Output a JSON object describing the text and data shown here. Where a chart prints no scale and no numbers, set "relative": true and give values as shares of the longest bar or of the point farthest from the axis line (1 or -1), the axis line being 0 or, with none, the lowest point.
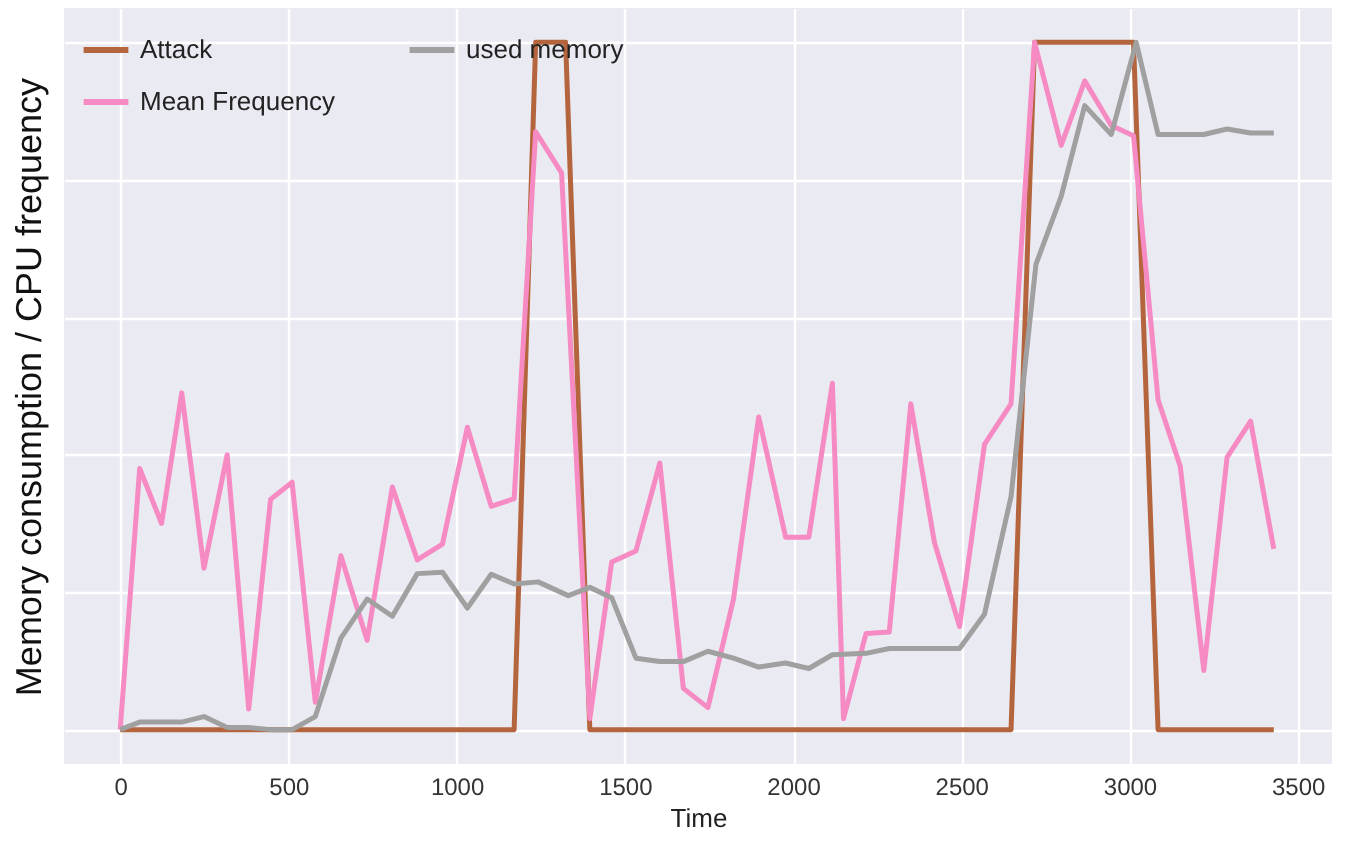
{
  "chart_data": {
    "type": "line",
    "xlabel": "Time",
    "ylabel": "Memory consumption / CPU frequency",
    "relative": true,
    "xlim": [
      -167,
      3602
    ],
    "xticks": [
      0,
      500,
      1000,
      1500,
      2000,
      2500,
      3000,
      3500
    ],
    "grid": true,
    "legend": "top left",
    "line_style": "solid",
    "series": [
      {
        "name": "Attack",
        "color": "#b5653e",
        "x": [
          0,
          1171,
          1235,
          1324,
          1396,
          2648,
          2718,
          3012,
          3085,
          3429
        ],
        "values": [
          0,
          0,
          1,
          1,
          0,
          0,
          1,
          1,
          0,
          0
        ]
      },
      {
        "name": "Mean Frequency",
        "color": "#f68bc3",
        "x": [
          0,
          58,
          123,
          183,
          249,
          318,
          382,
          447,
          511,
          580,
          656,
          734,
          809,
          883,
          958,
          1032,
          1103,
          1171,
          1235,
          1312,
          1396,
          1461,
          1533,
          1604,
          1674,
          1747,
          1823,
          1898,
          1978,
          2047,
          2117,
          2150,
          2217,
          2286,
          2350,
          2420,
          2495,
          2569,
          2648,
          2718,
          2797,
          2867,
          2946,
          3012,
          3085,
          3151,
          3221,
          3290,
          3360,
          3429
        ],
        "values": [
          0,
          0.38,
          0.3,
          0.49,
          0.235,
          0.4,
          0.03,
          0.335,
          0.36,
          0.04,
          0.253,
          0.13,
          0.353,
          0.247,
          0.27,
          0.44,
          0.325,
          0.336,
          0.87,
          0.81,
          0.016,
          0.244,
          0.26,
          0.388,
          0.06,
          0.032,
          0.19,
          0.455,
          0.28,
          0.28,
          0.504,
          0.016,
          0.14,
          0.142,
          0.474,
          0.273,
          0.15,
          0.415,
          0.474,
          1,
          0.85,
          0.944,
          0.879,
          0.864,
          0.48,
          0.383,
          0.086,
          0.396,
          0.449,
          0.263
        ]
      },
      {
        "name": "used memory",
        "color": "#a0a0a0",
        "x": [
          0,
          58,
          123,
          183,
          249,
          318,
          382,
          447,
          511,
          580,
          656,
          734,
          809,
          883,
          958,
          1032,
          1103,
          1171,
          1242,
          1332,
          1396,
          1461,
          1533,
          1604,
          1674,
          1747,
          1823,
          1898,
          1978,
          2047,
          2117,
          2217,
          2286,
          2360,
          2420,
          2495,
          2569,
          2648,
          2722,
          2797,
          2867,
          2946,
          3020,
          3085,
          3151,
          3221,
          3290,
          3360,
          3429
        ],
        "values": [
          0,
          0.011,
          0.011,
          0.011,
          0.019,
          0.003,
          0.003,
          0,
          0,
          0.019,
          0.133,
          0.19,
          0.165,
          0.227,
          0.229,
          0.177,
          0.226,
          0.212,
          0.215,
          0.195,
          0.207,
          0.192,
          0.104,
          0.099,
          0.099,
          0.114,
          0.104,
          0.091,
          0.097,
          0.089,
          0.109,
          0.111,
          0.118,
          0.118,
          0.118,
          0.118,
          0.168,
          0.339,
          0.677,
          0.776,
          0.908,
          0.866,
          1,
          0.866,
          0.866,
          0.866,
          0.874,
          0.868,
          0.868
        ]
      }
    ]
  }
}
